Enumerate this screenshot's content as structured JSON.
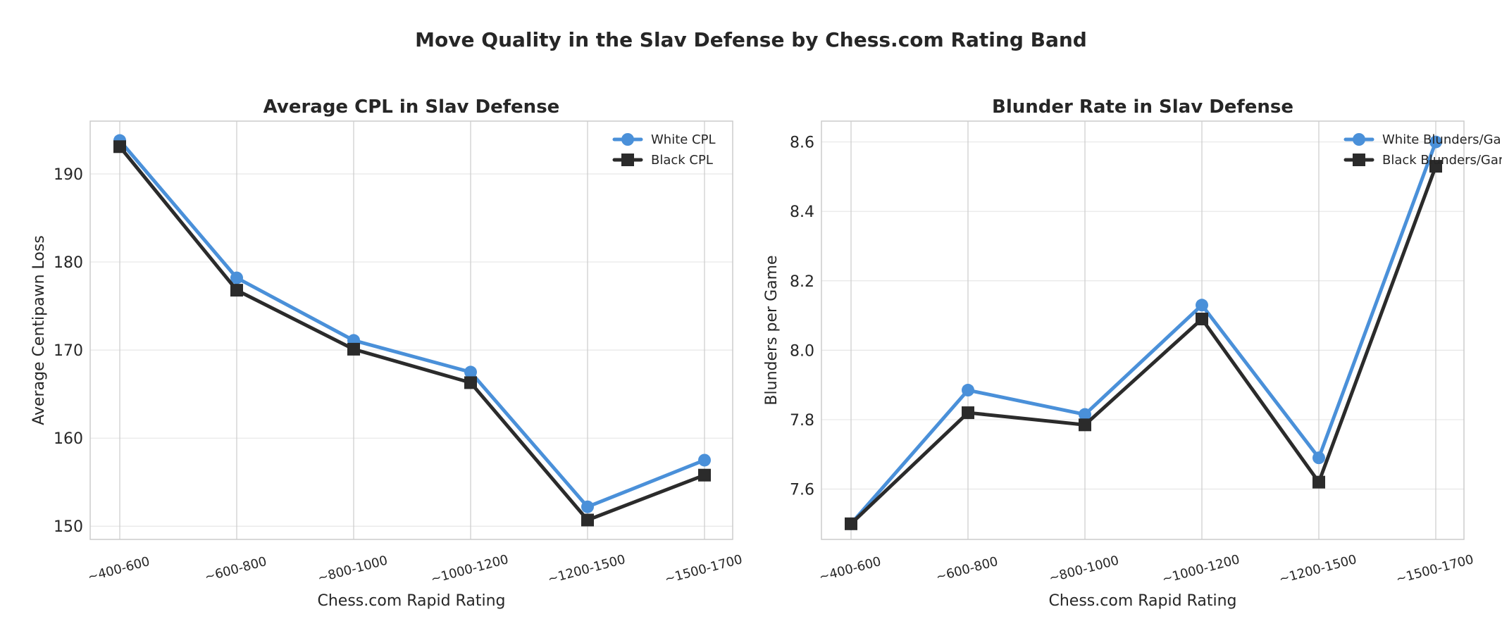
{
  "figure": {
    "title": "Move Quality in the Slav Defense by Chess.com Rating Band"
  },
  "colors": {
    "white_series": "#4a90d9",
    "black_series": "#2b2b2b",
    "grid": "#e6e6e6",
    "vgrid": "#cccccc",
    "spine": "#cccccc",
    "text": "#262626"
  },
  "chart_data": [
    {
      "type": "line",
      "title": "Average CPL in Slav Defense",
      "xlabel": "Chess.com Rapid Rating",
      "ylabel": "Average Centipawn Loss",
      "categories": [
        "~400-600",
        "~600-800",
        "~800-1000",
        "~1000-1200",
        "~1200-1500",
        "~1500-1700"
      ],
      "ylim": [
        148.5,
        196
      ],
      "yticks": [
        150,
        160,
        170,
        180,
        190
      ],
      "ytick_labels": [
        "150",
        "160",
        "170",
        "180",
        "190"
      ],
      "grid": true,
      "legend_position": "upper right",
      "series": [
        {
          "name": "White CPL",
          "marker": "circle",
          "color": "#4a90d9",
          "values": [
            193.8,
            178.2,
            171.1,
            167.5,
            152.2,
            157.5
          ]
        },
        {
          "name": "Black CPL",
          "marker": "square",
          "color": "#2b2b2b",
          "values": [
            193.1,
            176.8,
            170.1,
            166.3,
            150.7,
            155.8
          ]
        }
      ]
    },
    {
      "type": "line",
      "title": "Blunder Rate in Slav Defense",
      "xlabel": "Chess.com Rapid Rating",
      "ylabel": "Blunders per Game",
      "categories": [
        "~400-600",
        "~600-800",
        "~800-1000",
        "~1000-1200",
        "~1200-1500",
        "~1500-1700"
      ],
      "ylim": [
        7.455,
        8.66
      ],
      "yticks": [
        7.6,
        7.8,
        8.0,
        8.2,
        8.4,
        8.6
      ],
      "ytick_labels": [
        "7.6",
        "7.8",
        "8.0",
        "8.2",
        "8.4",
        "8.6"
      ],
      "grid": true,
      "legend_position": "upper right",
      "series": [
        {
          "name": "White Blunders/Game",
          "marker": "circle",
          "color": "#4a90d9",
          "values": [
            7.5,
            7.885,
            7.815,
            8.13,
            7.69,
            8.6
          ]
        },
        {
          "name": "Black Blunders/Game",
          "marker": "square",
          "color": "#2b2b2b",
          "values": [
            7.5,
            7.82,
            7.785,
            8.09,
            7.62,
            8.53
          ]
        }
      ]
    }
  ]
}
